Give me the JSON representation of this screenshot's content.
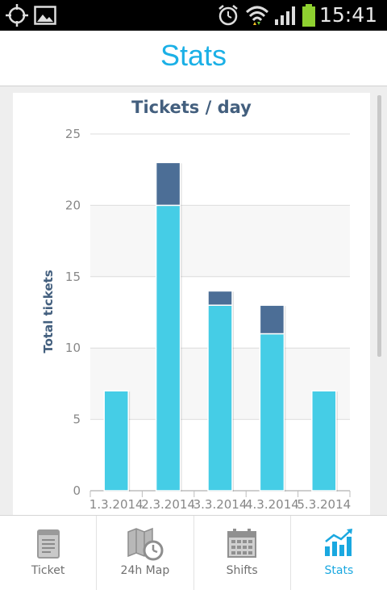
{
  "status_bar": {
    "time": "15:41",
    "icons": [
      "gps-icon",
      "image-icon",
      "alarm-icon",
      "wifi-icon",
      "signal-icon",
      "battery-icon"
    ]
  },
  "header": {
    "title": "Stats"
  },
  "chart_data": {
    "type": "bar",
    "stacked": true,
    "title": "Tickets / day",
    "ylabel": "Total tickets",
    "xlabel": "",
    "categories": [
      "1.3.2014",
      "2.3.2014",
      "3.3.2014",
      "4.3.2014",
      "5.3.2014"
    ],
    "series": [
      {
        "values": [
          7,
          20,
          13,
          11,
          7
        ],
        "color": "#45cde6"
      },
      {
        "values": [
          0,
          3,
          1,
          2,
          0
        ],
        "color": "#4c6e96"
      }
    ],
    "ylim": [
      0,
      25
    ],
    "yticks": [
      0,
      5,
      10,
      15,
      20,
      25
    ],
    "grid": true
  },
  "tabs": [
    {
      "label": "Ticket",
      "icon": "ticket-icon",
      "active": false
    },
    {
      "label": "24h Map",
      "icon": "map-clock-icon",
      "active": false
    },
    {
      "label": "Shifts",
      "icon": "calendar-icon",
      "active": false
    },
    {
      "label": "Stats",
      "icon": "chart-icon",
      "active": true
    }
  ],
  "colors": {
    "accent": "#1bb0e6",
    "title_dark": "#435f7e"
  }
}
